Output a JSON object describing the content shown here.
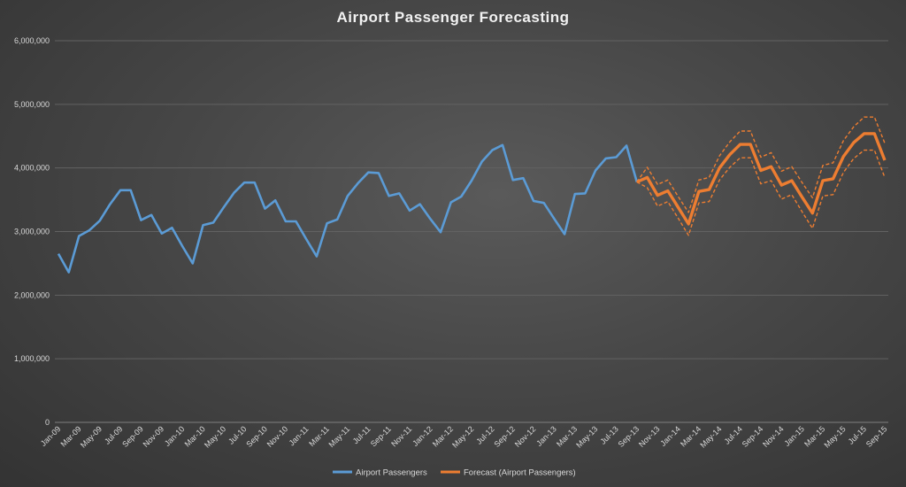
{
  "chart_data": {
    "type": "line",
    "title": "Airport Passenger Forecasting",
    "xlabel": "",
    "ylabel": "",
    "ylim": [
      0,
      6000000
    ],
    "yticks": [
      "0",
      "1,000,000",
      "2,000,000",
      "3,000,000",
      "4,000,000",
      "5,000,000",
      "6,000,000"
    ],
    "ytick_values": [
      0,
      1000000,
      2000000,
      3000000,
      4000000,
      5000000,
      6000000
    ],
    "x_labels": [
      "Jan-09",
      "Mar-09",
      "May-09",
      "Jul-09",
      "Sep-09",
      "Nov-09",
      "Jan-10",
      "Mar-10",
      "May-10",
      "Jul-10",
      "Sep-10",
      "Nov-10",
      "Jan-11",
      "Mar-11",
      "May-11",
      "Jul-11",
      "Sep-11",
      "Nov-11",
      "Jan-12",
      "Mar-12",
      "May-12",
      "Jul-12",
      "Sep-12",
      "Nov-12",
      "Jan-13",
      "Mar-13",
      "May-13",
      "Jul-13",
      "Sep-13",
      "Nov-13",
      "Jan-14",
      "Mar-14",
      "May-14",
      "Jul-14",
      "Sep-14",
      "Nov-14",
      "Jan-15",
      "Mar-15",
      "May-15",
      "Jul-15",
      "Sep-15"
    ],
    "grid": true,
    "legend_position": "bottom",
    "colors": {
      "actual": "#5b9bd5",
      "forecast": "#ed7d31"
    },
    "series": [
      {
        "name": "Airport Passengers",
        "start": "Jan-09",
        "values": [
          2650000,
          2360000,
          2930000,
          3020000,
          3170000,
          3430000,
          3650000,
          3650000,
          3180000,
          3260000,
          2970000,
          3060000,
          2770000,
          2500000,
          3100000,
          3140000,
          3380000,
          3610000,
          3770000,
          3770000,
          3360000,
          3490000,
          3160000,
          3160000,
          2880000,
          2610000,
          3130000,
          3190000,
          3560000,
          3760000,
          3930000,
          3920000,
          3560000,
          3600000,
          3330000,
          3430000,
          3200000,
          2990000,
          3460000,
          3550000,
          3800000,
          4100000,
          4280000,
          4360000,
          3810000,
          3840000,
          3480000,
          3450000,
          3200000,
          2960000,
          3590000,
          3600000,
          3960000,
          4150000,
          4170000,
          4350000,
          3780000
        ]
      },
      {
        "name": "Forecast (Airport Passengers)",
        "start": "Sep-13",
        "values": [
          3780000,
          3850000,
          3570000,
          3640000,
          3380000,
          3120000,
          3630000,
          3660000,
          4000000,
          4210000,
          4370000,
          4370000,
          3960000,
          4020000,
          3730000,
          3800000,
          3540000,
          3290000,
          3800000,
          3830000,
          4180000,
          4400000,
          4540000,
          4540000,
          4120000
        ],
        "upper": [
          3780000,
          4010000,
          3740000,
          3810000,
          3550000,
          3300000,
          3810000,
          3850000,
          4190000,
          4410000,
          4580000,
          4580000,
          4170000,
          4240000,
          3950000,
          4020000,
          3770000,
          3530000,
          4040000,
          4080000,
          4430000,
          4650000,
          4800000,
          4800000,
          4390000
        ],
        "lower": [
          3780000,
          3690000,
          3400000,
          3470000,
          3210000,
          2940000,
          3450000,
          3470000,
          3810000,
          4010000,
          4160000,
          4160000,
          3750000,
          3800000,
          3510000,
          3580000,
          3310000,
          3050000,
          3560000,
          3580000,
          3930000,
          4150000,
          4280000,
          4280000,
          3850000
        ]
      }
    ]
  }
}
